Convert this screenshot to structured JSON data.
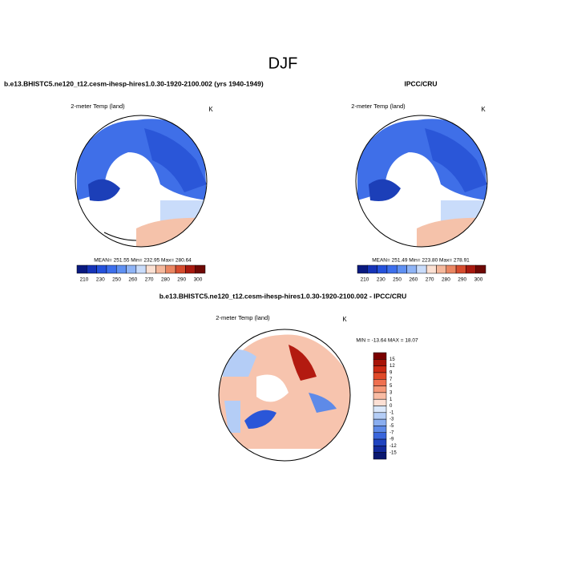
{
  "title": "DJF",
  "panels": [
    {
      "title": "b.e13.BHISTC5.ne120_t12.cesm-ihesp-hires1.0.30-1920-2100.002 (yrs 1940-1949)",
      "subtitle": "2-meter Temp (land)",
      "units": "K",
      "stats": "MEAN= 251.55  Min= 232.95  Max= 280.64",
      "colorbar": {
        "labels": [
          210,
          230,
          250,
          260,
          270,
          280,
          290,
          300
        ],
        "colors": [
          "#0a1a80",
          "#1634b8",
          "#2552dc",
          "#3d6fec",
          "#5f90f2",
          "#8fb4f6",
          "#c9dcfa",
          "#fbe0d2",
          "#f5b89c",
          "#ea8662",
          "#d64c2e",
          "#a81a10",
          "#6e0804"
        ]
      }
    },
    {
      "title": "IPCC/CRU",
      "subtitle": "2-meter Temp (land)",
      "units": "K",
      "stats": "MEAN= 251.49  Min= 223.80  Max= 278.91",
      "colorbar": {
        "labels": [
          210,
          230,
          250,
          260,
          270,
          280,
          290,
          300
        ],
        "colors": [
          "#0a1a80",
          "#1634b8",
          "#2552dc",
          "#3d6fec",
          "#5f90f2",
          "#8fb4f6",
          "#c9dcfa",
          "#fbe0d2",
          "#f5b89c",
          "#ea8662",
          "#d64c2e",
          "#a81a10",
          "#6e0804"
        ]
      }
    },
    {
      "title": "b.e13.BHISTC5.ne120_t12.cesm-ihesp-hires1.0.30-1920-2100.002 - IPCC/CRU",
      "subtitle": "2-meter Temp (land)",
      "units": "K",
      "stats": "MIN = -13.64  MAX =  18.07",
      "colorbar": {
        "labels": [
          15,
          12,
          9,
          7,
          5,
          3,
          1,
          0,
          -1,
          -3,
          -5,
          -7,
          -9,
          -12,
          -15
        ],
        "colors": [
          "#7a0000",
          "#a81408",
          "#cc2a14",
          "#e04a2a",
          "#ef7050",
          "#f59878",
          "#f9bca4",
          "#fde0d4",
          "#dbe8fb",
          "#b4cdf6",
          "#8aaef0",
          "#5e8ae8",
          "#3a66dc",
          "#2044c0",
          "#122a9c",
          "#0a1870"
        ]
      }
    }
  ]
}
